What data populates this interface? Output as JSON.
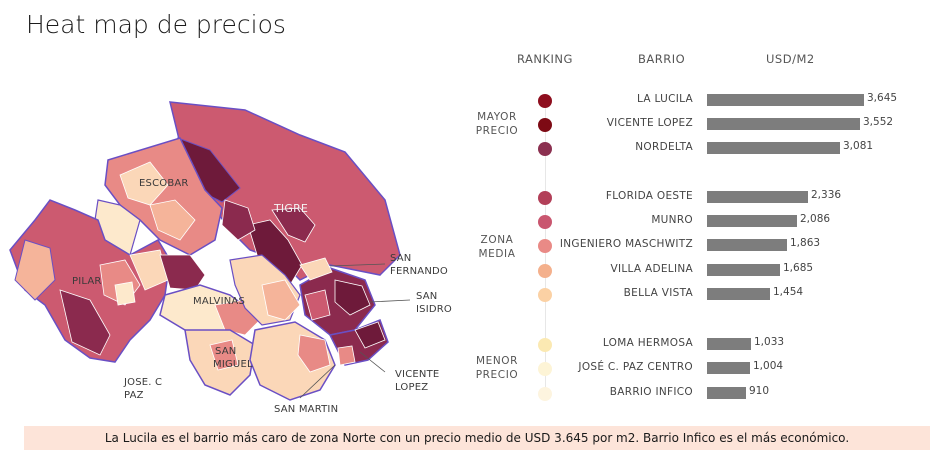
{
  "title": "Heat map de precios",
  "map_labels": {
    "escobar": "ESCOBAR",
    "tigre": "TIGRE",
    "san_fernando_1": "SAN",
    "san_fernando_2": "FERNANDO",
    "san_isidro_1": "SAN",
    "san_isidro_2": "ISIDRO",
    "pilar": "PILAR",
    "malvinas": "MALVINAS",
    "san_miguel_1": "SAN",
    "san_miguel_2": "MIGUEL",
    "jose_c_paz_1": "JOSE. C",
    "jose_c_paz_2": "PAZ",
    "vicente_lopez_1": "VICENTE",
    "vicente_lopez_2": "LOPEZ",
    "san_martin": "SAN MARTIN"
  },
  "headers": {
    "ranking": "RANKING",
    "barrio": "BARRIO",
    "usd": "USD/M2"
  },
  "groups": {
    "mayor": [
      "MAYOR",
      "PRECIO"
    ],
    "media": [
      "ZONA",
      "MEDIA"
    ],
    "menor": [
      "MENOR",
      "PRECIO"
    ]
  },
  "colors": {
    "bar": "#7d7d7d",
    "footer_bg": "#fde4d9",
    "scale": [
      "#6e1a3a",
      "#8b2a4e",
      "#b2435f",
      "#cc5a70",
      "#e88a86",
      "#f5b49a",
      "#fbd7b8",
      "#fde9cc"
    ]
  },
  "chart_data": {
    "type": "bar",
    "orientation": "horizontal",
    "xlabel": "USD/M2",
    "categories": [
      "LA LUCILA",
      "VICENTE LOPEZ",
      "NORDELTA",
      "FLORIDA OESTE",
      "MUNRO",
      "INGENIERO MASCHWITZ",
      "VILLA ADELINA",
      "BELLA VISTA",
      "LOMA HERMOSA",
      "JOSÉ C. PAZ CENTRO",
      "BARRIO INFICO"
    ],
    "values": [
      3645,
      3552,
      3081,
      2336,
      2086,
      1863,
      1685,
      1454,
      1033,
      1004,
      910
    ],
    "value_labels": [
      "3,645",
      "3,552",
      "3,081",
      "2,336",
      "2,086",
      "1,863",
      "1,685",
      "1,454",
      "1,033",
      "1,004",
      "910"
    ],
    "groups": [
      "mayor",
      "mayor",
      "mayor",
      "media",
      "media",
      "media",
      "media",
      "media",
      "menor",
      "menor",
      "menor"
    ],
    "dot_colors": [
      "#8e0e1e",
      "#7d0a14",
      "#8b3050",
      "#b23f58",
      "#c9566f",
      "#e98a86",
      "#f4b08c",
      "#fbd1a4",
      "#fbe9b2",
      "#fdf4d6",
      "#fdf4df"
    ],
    "grid": false
  },
  "footer": "La Lucila es el barrio más caro de zona Norte con un precio medio de USD 3.645 por m2. Barrio Infico es el más económico."
}
